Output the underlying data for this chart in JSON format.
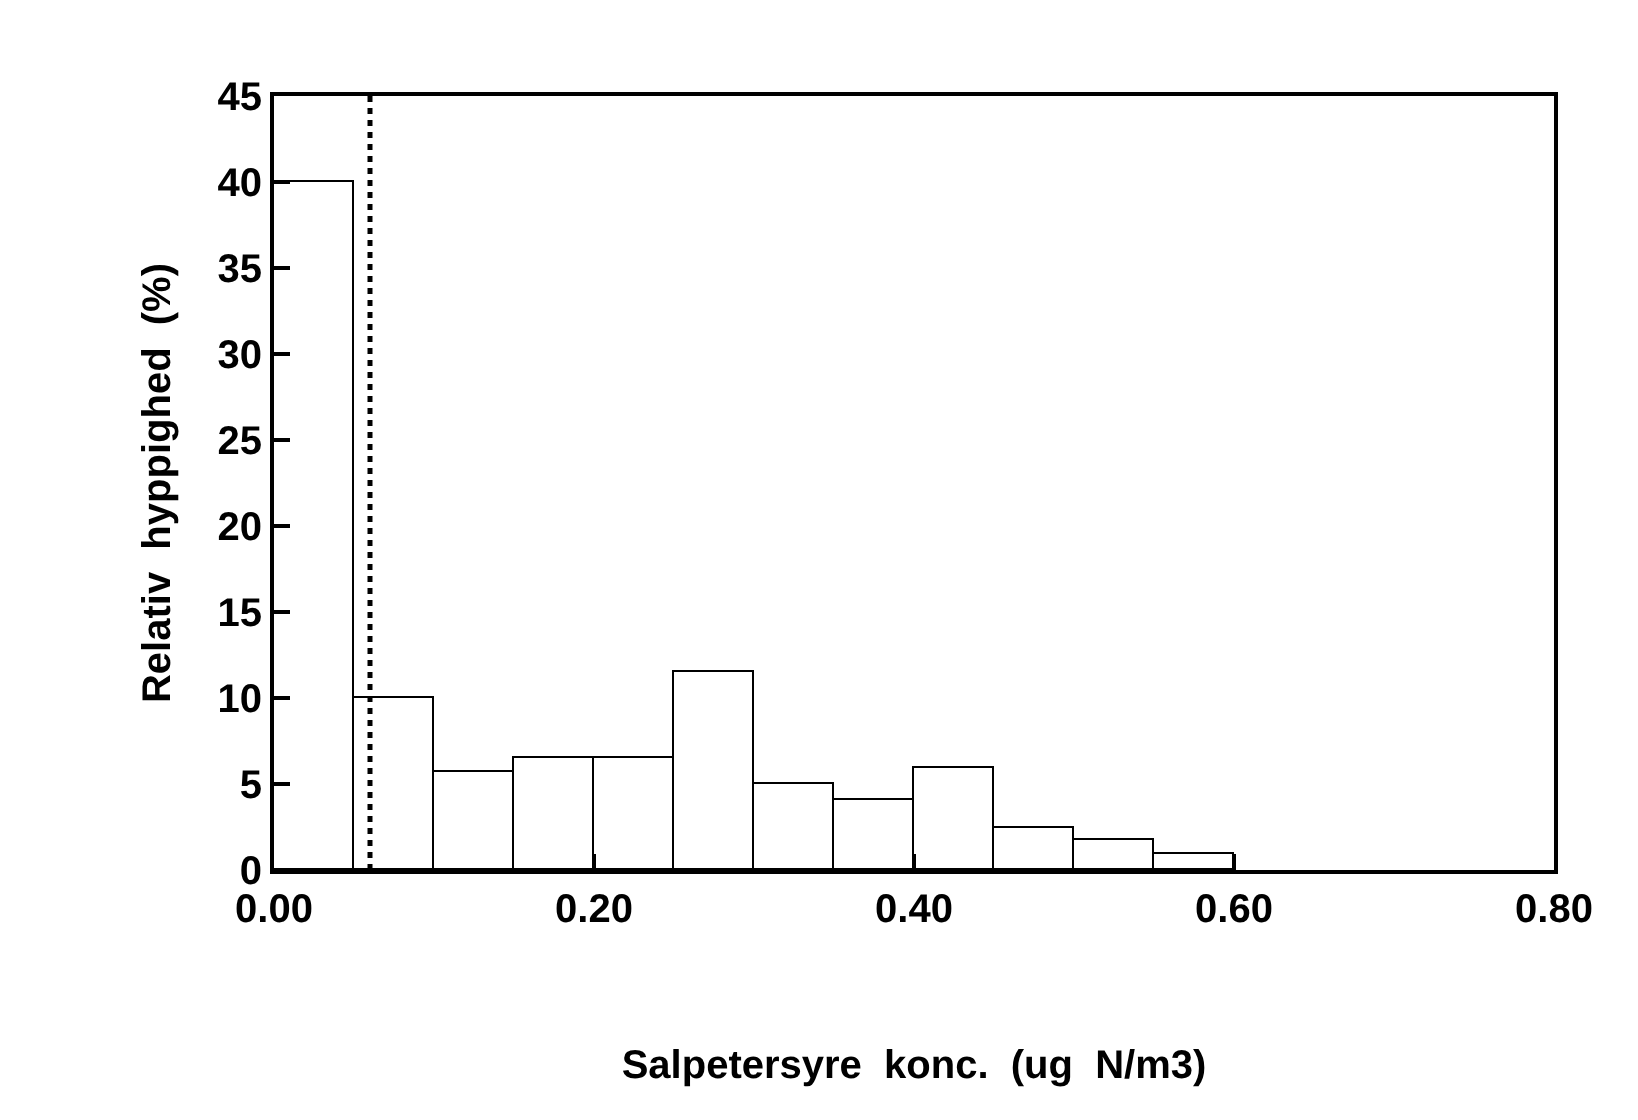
{
  "chart_data": {
    "type": "histogram",
    "xlabel": "Salpetersyre  konc.  (ug  N/m3)",
    "ylabel": "Relativ  hyppighed  (%)",
    "bins": [
      0,
      0.05,
      0.1,
      0.15,
      0.2,
      0.25,
      0.3,
      0.35,
      0.4,
      0.45,
      0.5,
      0.55,
      0.6
    ],
    "values": [
      40,
      10,
      5.7,
      6.5,
      6.5,
      11.5,
      5,
      4.1,
      5.9,
      2.5,
      1.7,
      0.9
    ],
    "color": "#000000",
    "xlim": [
      0,
      0.8
    ],
    "xticks": [
      {
        "value": 0,
        "label": "0.00"
      },
      {
        "value": 0.2,
        "label": "0.20"
      },
      {
        "value": 0.4,
        "label": "0.40"
      },
      {
        "value": 0.6,
        "label": "0.60"
      },
      {
        "value": 0.8,
        "label": "0.80"
      }
    ],
    "ylim": [
      0,
      45
    ],
    "yticks": [
      0,
      5,
      10,
      15,
      20,
      25,
      30,
      35,
      40,
      45
    ],
    "ref_lines": [
      {
        "axis": "x",
        "value": 0.06,
        "label": null,
        "color": "#000000",
        "line_style": "dotted"
      }
    ]
  }
}
